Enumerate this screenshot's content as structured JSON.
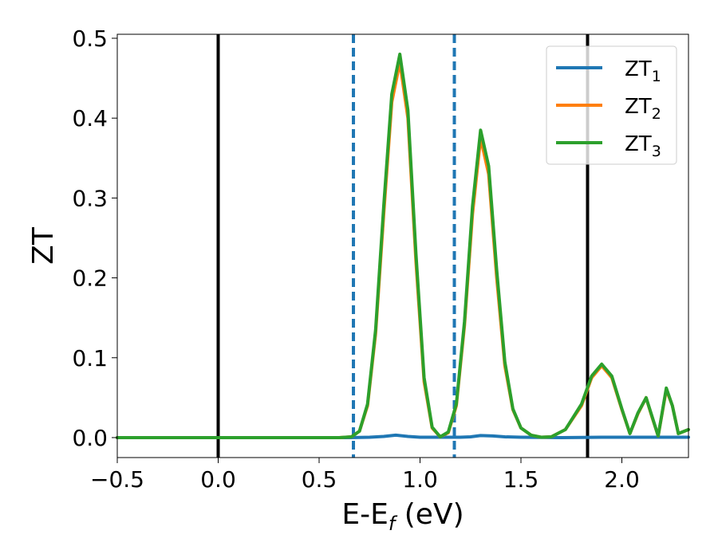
{
  "chart_data": {
    "type": "line",
    "xlabel": "E-E",
    "xlabel_sub": "f",
    "xlabel_unit": " (eV)",
    "ylabel": "ZT",
    "xlim": [
      -0.5,
      2.33
    ],
    "ylim": [
      -0.025,
      0.505
    ],
    "xticks": [
      -0.5,
      0.0,
      0.5,
      1.0,
      1.5,
      2.0
    ],
    "xtick_labels": [
      "−0.5",
      "0.0",
      "0.5",
      "1.0",
      "1.5",
      "2.0"
    ],
    "yticks": [
      0.0,
      0.1,
      0.2,
      0.3,
      0.4,
      0.5
    ],
    "ytick_labels": [
      "0.0",
      "0.1",
      "0.2",
      "0.3",
      "0.4",
      "0.5"
    ],
    "grid": false,
    "legend_position": "top-right",
    "vlines": [
      {
        "x": 0.0,
        "style": "solid",
        "color": "#000000"
      },
      {
        "x": 1.83,
        "style": "solid",
        "color": "#000000"
      },
      {
        "x": 0.67,
        "style": "dashed",
        "color": "#1f77b4"
      },
      {
        "x": 1.17,
        "style": "dashed",
        "color": "#1f77b4"
      }
    ],
    "series": [
      {
        "name": "ZT",
        "sub": "1",
        "color": "#1f77b4",
        "x": [
          -0.5,
          0.0,
          0.5,
          0.65,
          0.75,
          0.82,
          0.88,
          0.94,
          1.0,
          1.1,
          1.2,
          1.25,
          1.3,
          1.36,
          1.42,
          1.5,
          1.7,
          1.9,
          2.1,
          2.33
        ],
        "y": [
          0.0,
          0.0,
          0.0,
          0.0,
          0.0005,
          0.0015,
          0.003,
          0.0015,
          0.0005,
          0.0005,
          0.0005,
          0.001,
          0.0025,
          0.002,
          0.001,
          0.0005,
          0.0,
          0.0005,
          0.0005,
          0.0005
        ]
      },
      {
        "name": "ZT",
        "sub": "2",
        "color": "#ff7f0e",
        "x": [
          -0.5,
          0.0,
          0.5,
          0.6,
          0.66,
          0.7,
          0.74,
          0.78,
          0.82,
          0.86,
          0.9,
          0.94,
          0.98,
          1.02,
          1.06,
          1.1,
          1.14,
          1.18,
          1.22,
          1.26,
          1.3,
          1.34,
          1.38,
          1.42,
          1.46,
          1.5,
          1.55,
          1.6,
          1.65,
          1.72,
          1.8,
          1.85,
          1.9,
          1.95,
          2.0,
          2.04,
          2.08,
          2.12,
          2.15,
          2.18,
          2.22,
          2.25,
          2.28,
          2.33
        ],
        "y": [
          0.0,
          0.0,
          0.0,
          0.0,
          0.001,
          0.008,
          0.04,
          0.13,
          0.28,
          0.42,
          0.47,
          0.4,
          0.22,
          0.07,
          0.012,
          0.001,
          0.006,
          0.04,
          0.14,
          0.28,
          0.375,
          0.33,
          0.2,
          0.09,
          0.035,
          0.012,
          0.003,
          0.0005,
          0.001,
          0.01,
          0.04,
          0.075,
          0.09,
          0.075,
          0.035,
          0.005,
          0.03,
          0.05,
          0.025,
          0.002,
          0.06,
          0.04,
          0.005,
          0.01
        ]
      },
      {
        "name": "ZT",
        "sub": "3",
        "color": "#2ca02c",
        "x": [
          -0.5,
          0.0,
          0.5,
          0.6,
          0.66,
          0.7,
          0.74,
          0.78,
          0.82,
          0.86,
          0.9,
          0.94,
          0.98,
          1.02,
          1.06,
          1.1,
          1.14,
          1.18,
          1.22,
          1.26,
          1.3,
          1.34,
          1.38,
          1.42,
          1.46,
          1.5,
          1.55,
          1.6,
          1.65,
          1.72,
          1.8,
          1.85,
          1.9,
          1.95,
          2.0,
          2.04,
          2.08,
          2.12,
          2.15,
          2.18,
          2.22,
          2.25,
          2.28,
          2.33
        ],
        "y": [
          0.0,
          0.0,
          0.0,
          0.0,
          0.001,
          0.008,
          0.042,
          0.135,
          0.29,
          0.43,
          0.48,
          0.41,
          0.23,
          0.075,
          0.013,
          0.001,
          0.007,
          0.042,
          0.145,
          0.29,
          0.385,
          0.34,
          0.21,
          0.095,
          0.036,
          0.012,
          0.003,
          0.0005,
          0.001,
          0.01,
          0.042,
          0.077,
          0.092,
          0.077,
          0.036,
          0.005,
          0.031,
          0.05,
          0.026,
          0.002,
          0.062,
          0.04,
          0.005,
          0.01
        ]
      }
    ]
  }
}
